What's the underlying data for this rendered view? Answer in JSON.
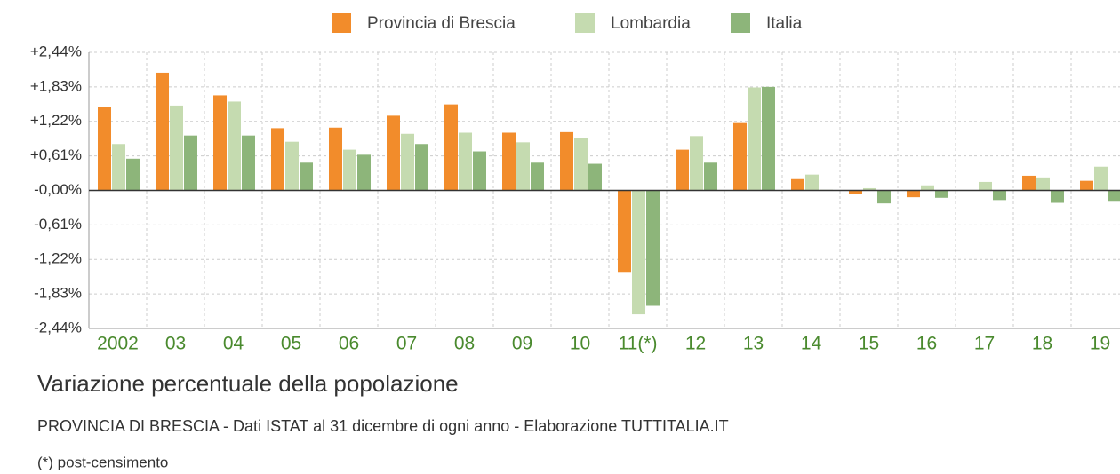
{
  "chart_data": {
    "type": "bar",
    "title": "Variazione percentuale della popolazione",
    "subtitle": "PROVINCIA DI BRESCIA - Dati ISTAT al 31 dicembre di ogni anno - Elaborazione TUTTITALIA.IT",
    "note": "(*) post-censimento",
    "categories": [
      "2002",
      "03",
      "04",
      "05",
      "06",
      "07",
      "08",
      "09",
      "10",
      "11(*)",
      "12",
      "13",
      "14",
      "15",
      "16",
      "17",
      "18",
      "19"
    ],
    "series": [
      {
        "name": "Provincia di Brescia",
        "color": "#f28c2b",
        "values": [
          1.47,
          2.08,
          1.68,
          1.1,
          1.11,
          1.32,
          1.52,
          1.02,
          1.03,
          -1.44,
          0.72,
          1.19,
          0.2,
          -0.07,
          -0.12,
          0.0,
          0.26,
          0.17
        ]
      },
      {
        "name": "Lombardia",
        "color": "#c5dbb0",
        "values": [
          0.82,
          1.5,
          1.57,
          0.86,
          0.72,
          1.0,
          1.02,
          0.85,
          0.92,
          -2.19,
          0.96,
          1.82,
          0.28,
          0.04,
          0.09,
          0.15,
          0.23,
          0.42
        ]
      },
      {
        "name": "Italia",
        "color": "#8db57a",
        "values": [
          0.56,
          0.97,
          0.97,
          0.49,
          0.63,
          0.82,
          0.69,
          0.49,
          0.47,
          -2.04,
          0.49,
          1.83,
          0.01,
          -0.23,
          -0.13,
          -0.17,
          -0.22,
          -0.2
        ]
      }
    ],
    "ylim": [
      -2.44,
      2.44
    ],
    "yticks": [
      {
        "value": 2.44,
        "label": "+2,44%"
      },
      {
        "value": 1.83,
        "label": "+1,83%"
      },
      {
        "value": 1.22,
        "label": "+1,22%"
      },
      {
        "value": 0.61,
        "label": "+0,61%"
      },
      {
        "value": 0,
        "label": "-0,00%"
      },
      {
        "value": -0.61,
        "label": "-0,61%"
      },
      {
        "value": -1.22,
        "label": "-1,22%"
      },
      {
        "value": -1.83,
        "label": "-1,83%"
      },
      {
        "value": -2.44,
        "label": "-2,44%"
      }
    ],
    "grid": true
  }
}
